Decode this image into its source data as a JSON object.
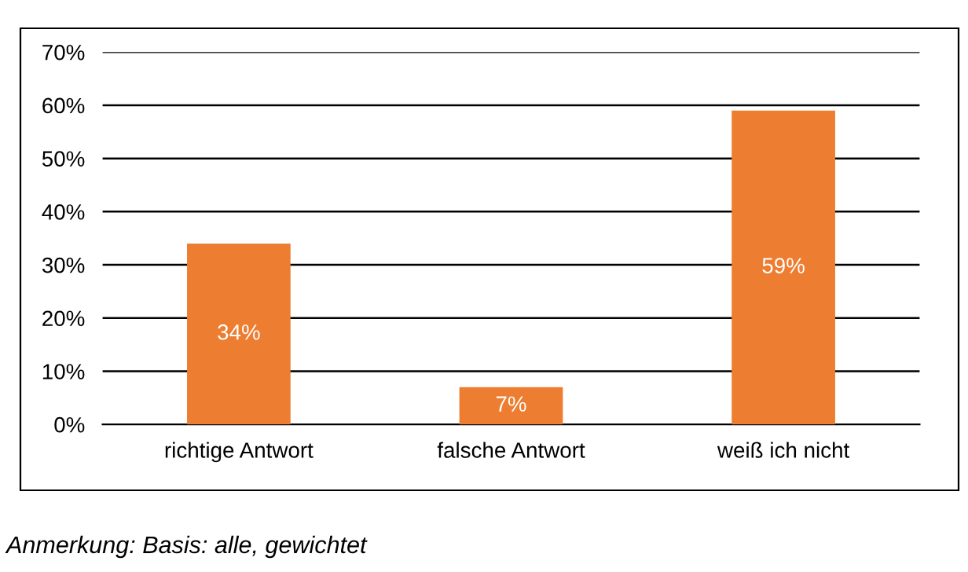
{
  "chart_data": {
    "type": "bar",
    "categories": [
      "richtige Antwort",
      "falsche Antwort",
      "weiß ich nicht"
    ],
    "values": [
      34,
      7,
      59
    ],
    "value_labels": [
      "34%",
      "7%",
      "59%"
    ],
    "color": "#ed7d31",
    "ylim": [
      0,
      70
    ],
    "yticks": [
      {
        "value": 0,
        "label": "0%"
      },
      {
        "value": 10,
        "label": "10%"
      },
      {
        "value": 20,
        "label": "20%"
      },
      {
        "value": 30,
        "label": "30%"
      },
      {
        "value": 40,
        "label": "40%"
      },
      {
        "value": 50,
        "label": "50%"
      },
      {
        "value": 60,
        "label": "60%"
      },
      {
        "value": 70,
        "label": "70%"
      }
    ],
    "grid": "y",
    "annotations": [
      "Anmerkung: Basis: alle, gewichtet"
    ]
  }
}
